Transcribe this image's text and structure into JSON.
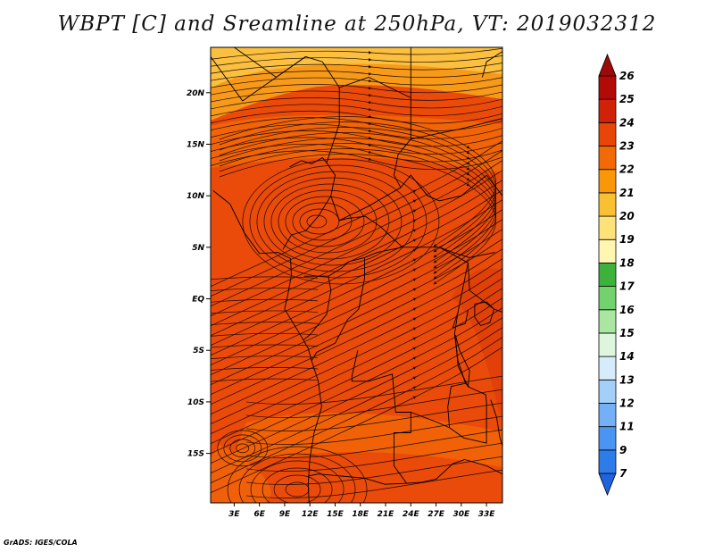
{
  "title": "WBPT [C] and Sreamline at 250hPa, VT: 2019032312",
  "credit": "GrADS: IGES/COLA",
  "map": {
    "lat_labels": [
      {
        "lat": 20,
        "label": "20N"
      },
      {
        "lat": 15,
        "label": "15N"
      },
      {
        "lat": 10,
        "label": "10N"
      },
      {
        "lat": 5,
        "label": "5N"
      },
      {
        "lat": 0,
        "label": "EQ"
      },
      {
        "lat": -5,
        "label": "5S"
      },
      {
        "lat": -10,
        "label": "10S"
      },
      {
        "lat": -15,
        "label": "15S"
      }
    ],
    "lon_labels": [
      {
        "lon": 3,
        "label": "3E"
      },
      {
        "lon": 6,
        "label": "6E"
      },
      {
        "lon": 9,
        "label": "9E"
      },
      {
        "lon": 12,
        "label": "12E"
      },
      {
        "lon": 15,
        "label": "15E"
      },
      {
        "lon": 18,
        "label": "18E"
      },
      {
        "lon": 21,
        "label": "21E"
      },
      {
        "lon": 24,
        "label": "24E"
      },
      {
        "lon": 27,
        "label": "27E"
      },
      {
        "lon": 30,
        "label": "30E"
      },
      {
        "lon": 33,
        "label": "33E"
      }
    ],
    "lat_range": [
      -19.8,
      24.4
    ],
    "lon_range": [
      0.2,
      34.9
    ],
    "fill_colors": {
      "base": "#ea4a0a",
      "warm_band": "#f26808",
      "north": "#f79a1a",
      "north_light": "#fbc040",
      "hot": "#d93808"
    },
    "line_color": "#1a0a00"
  },
  "colorbar": {
    "levels": [
      "7",
      "9",
      "11",
      "12",
      "13",
      "14",
      "15",
      "16",
      "17",
      "18",
      "19",
      "20",
      "21",
      "22",
      "23",
      "24",
      "25",
      "26"
    ],
    "colors": [
      "#1f63df",
      "#2e7bea",
      "#4b95f2",
      "#73b0f6",
      "#a3cff9",
      "#d6ecfb",
      "#ddf6dd",
      "#a9e7a0",
      "#72d26d",
      "#3cb23c",
      "#fff6b0",
      "#fde27a",
      "#f9c032",
      "#f99709",
      "#f26a06",
      "#e84508",
      "#cf2208",
      "#b20a06",
      "#9c0a0a"
    ]
  }
}
